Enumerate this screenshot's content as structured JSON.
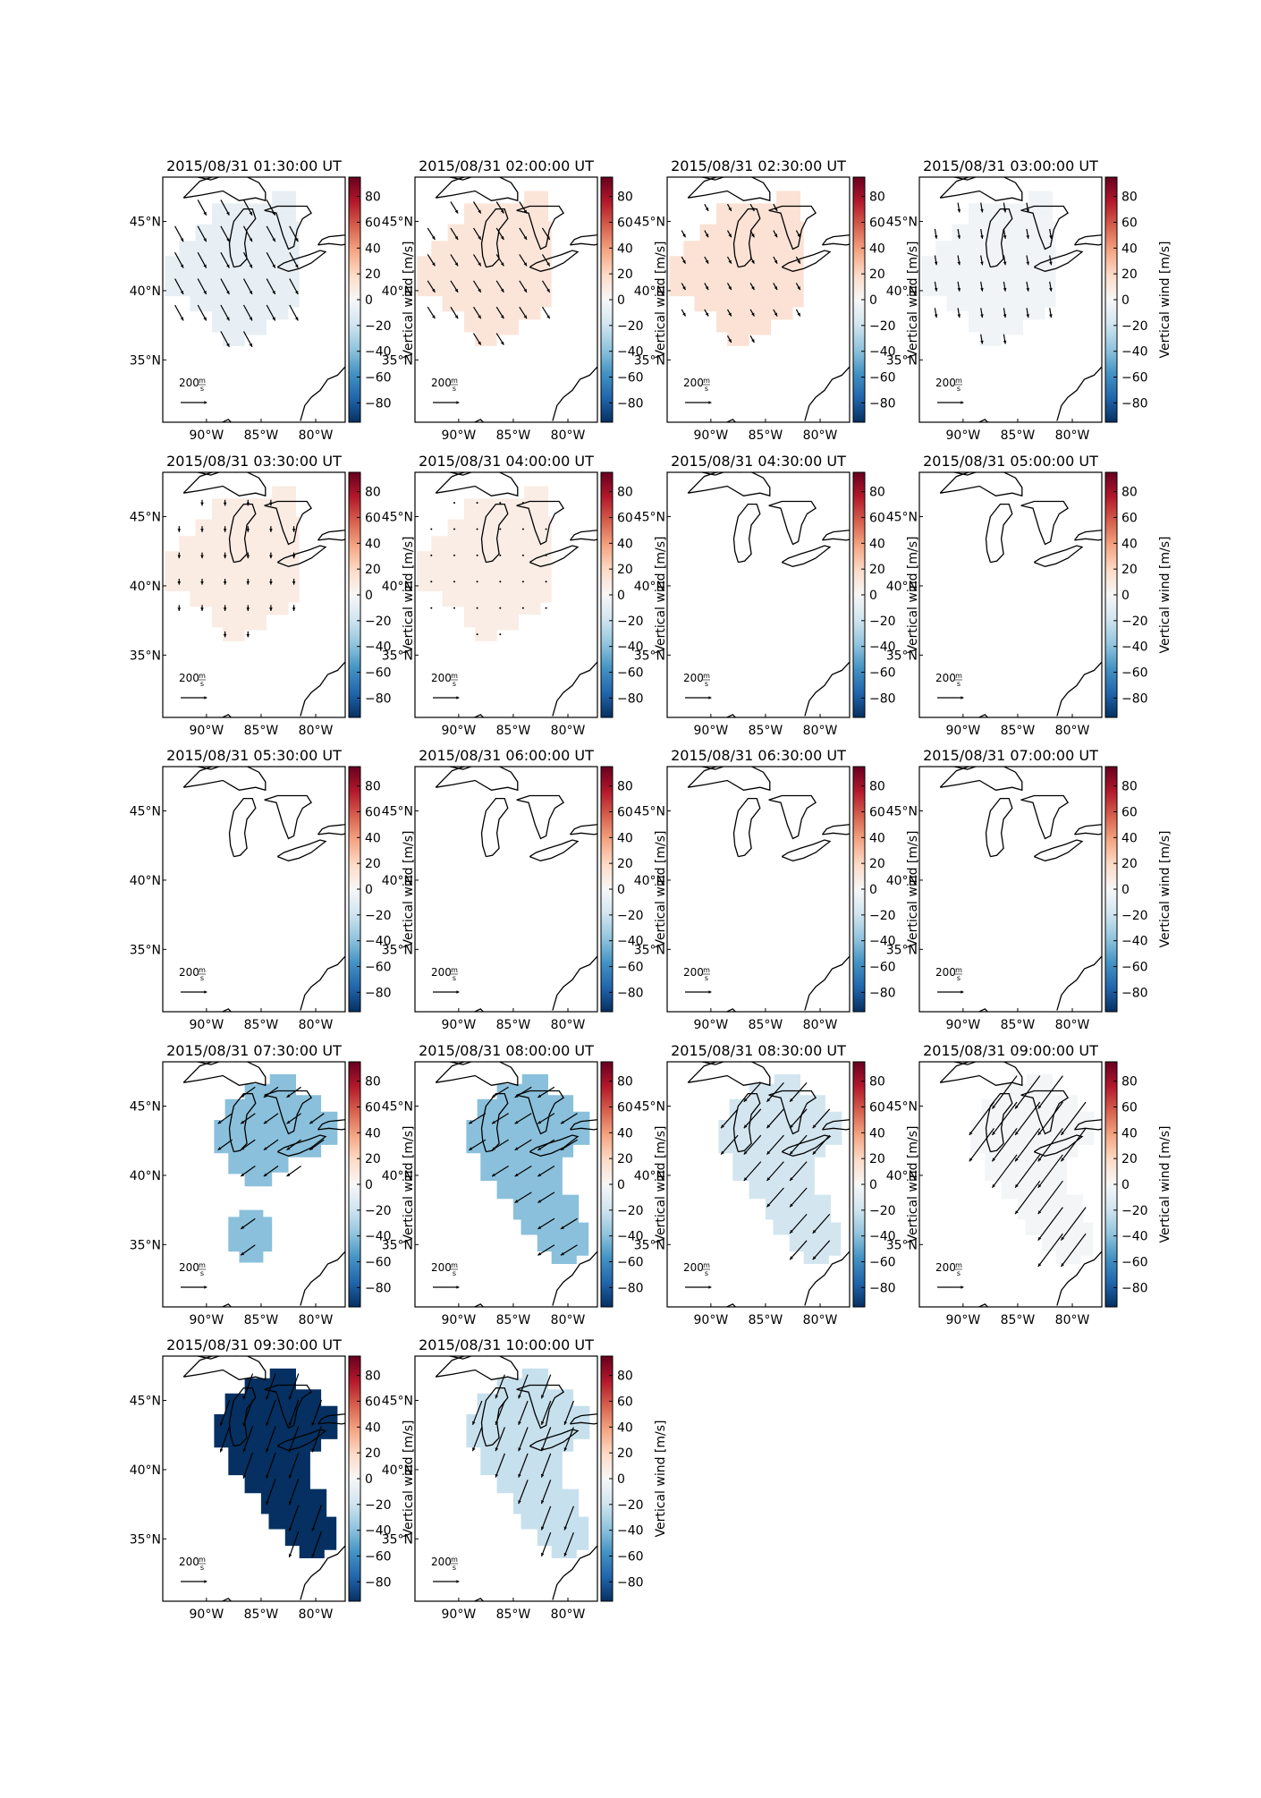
{
  "figure": {
    "colorbar": {
      "label": "Vertical wind [m/s]",
      "ticks": [
        80,
        60,
        40,
        20,
        0,
        -20,
        -40,
        -60,
        -80
      ],
      "tick_labels": [
        "80",
        "60",
        "40",
        "20",
        "0",
        "−20",
        "−40",
        "−60",
        "−80"
      ],
      "range": [
        -95,
        95
      ],
      "colormap": [
        "#67001f",
        "#b2182b",
        "#d6604d",
        "#f4a582",
        "#fddbc7",
        "#f7f7f7",
        "#d1e5f0",
        "#92c5de",
        "#4393c3",
        "#2166ac",
        "#053061"
      ]
    },
    "axes": {
      "lon_ticks": [
        -90,
        -85,
        -80
      ],
      "lon_labels": [
        "90°W",
        "85°W",
        "80°W"
      ],
      "lat_ticks": [
        45,
        40,
        35
      ],
      "lat_labels": [
        "45°N",
        "40°N",
        "35°N"
      ],
      "lon_range": [
        -94,
        -77.3
      ],
      "lat_range": [
        30.5,
        48.2
      ]
    },
    "reference_arrow": {
      "value": "200",
      "unit_num": "m",
      "unit_den": "s"
    },
    "panels": [
      {
        "title": "2015/08/31 01:30:00 UT",
        "vertical_wind": -8,
        "wind": [
          30,
          -55
        ],
        "region": "A",
        "arrow_scale": 0.9
      },
      {
        "title": "2015/08/31 02:00:00 UT",
        "vertical_wind": 12,
        "wind": [
          22,
          -35
        ],
        "region": "A",
        "arrow_scale": 0.7
      },
      {
        "title": "2015/08/31 02:30:00 UT",
        "vertical_wind": 14,
        "wind": [
          10,
          -18
        ],
        "region": "A",
        "arrow_scale": 0.4
      },
      {
        "title": "2015/08/31 03:00:00 UT",
        "vertical_wind": -3,
        "wind": [
          5,
          -30
        ],
        "region": "A",
        "arrow_scale": 0.5
      },
      {
        "title": "2015/08/31 03:30:00 UT",
        "vertical_wind": 8,
        "wind": [
          0,
          -18
        ],
        "region": "A",
        "arrow_scale": 0.3
      },
      {
        "title": "2015/08/31 04:00:00 UT",
        "vertical_wind": 7,
        "wind": [
          0,
          -4
        ],
        "region": "A",
        "arrow_scale": 0.1
      },
      {
        "title": "2015/08/31 04:30:00 UT",
        "vertical_wind": null,
        "wind": null,
        "region": "none",
        "arrow_scale": 0
      },
      {
        "title": "2015/08/31 05:00:00 UT",
        "vertical_wind": null,
        "wind": null,
        "region": "none",
        "arrow_scale": 0
      },
      {
        "title": "2015/08/31 05:30:00 UT",
        "vertical_wind": null,
        "wind": null,
        "region": "none",
        "arrow_scale": 0
      },
      {
        "title": "2015/08/31 06:00:00 UT",
        "vertical_wind": null,
        "wind": null,
        "region": "none",
        "arrow_scale": 0
      },
      {
        "title": "2015/08/31 06:30:00 UT",
        "vertical_wind": null,
        "wind": null,
        "region": "none",
        "arrow_scale": 0
      },
      {
        "title": "2015/08/31 07:00:00 UT",
        "vertical_wind": null,
        "wind": null,
        "region": "none",
        "arrow_scale": 0
      },
      {
        "title": "2015/08/31 07:30:00 UT",
        "vertical_wind": -40,
        "wind": [
          -35,
          -25
        ],
        "region": "B",
        "arrow_scale": 0.9
      },
      {
        "title": "2015/08/31 08:00:00 UT",
        "vertical_wind": -40,
        "wind": [
          -40,
          -25
        ],
        "region": "C",
        "arrow_scale": 1.0
      },
      {
        "title": "2015/08/31 08:30:00 UT",
        "vertical_wind": -18,
        "wind": [
          -40,
          -45
        ],
        "region": "C",
        "arrow_scale": 1.3
      },
      {
        "title": "2015/08/31 09:00:00 UT",
        "vertical_wind": -2,
        "wind": [
          -60,
          -80
        ],
        "region": "C",
        "arrow_scale": 2.1
      },
      {
        "title": "2015/08/31 09:30:00 UT",
        "vertical_wind": -95,
        "wind": [
          -25,
          -70
        ],
        "region": "C",
        "arrow_scale": 1.4
      },
      {
        "title": "2015/08/31 10:00:00 UT",
        "vertical_wind": -22,
        "wind": [
          -25,
          -65
        ],
        "region": "C",
        "arrow_scale": 1.3
      }
    ]
  }
}
